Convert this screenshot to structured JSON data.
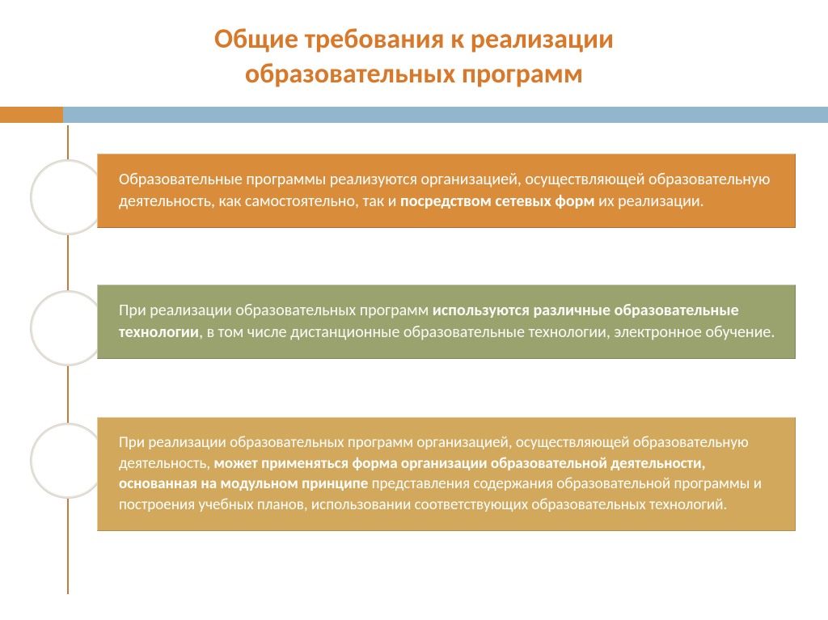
{
  "title_line1": "Общие требования к реализации",
  "title_line2": "образовательных программ",
  "boxes": [
    {
      "pre": "Образовательные программы реализуются организацией, осуществляющей образовательную деятельность, как самостоятельно, так и ",
      "bold": "посредством сетевых форм",
      "post": " их реализации."
    },
    {
      "pre": "При реализации образовательных программ ",
      "bold": "используются различные образовательные технологии",
      "post": ", в том числе дистанционные образовательные технологии, электронное обучение."
    },
    {
      "pre": "При реализации образовательных программ организацией, осуществляющей образовательную деятельность, ",
      "bold": "может применяться форма организации образовательной деятельности, основанная на модульном принципе",
      "post": " представления содержания образовательной программы и построения учебных планов, использовании соответствующих образовательных технологий."
    }
  ],
  "colors": {
    "title": "#d97828",
    "accent_short": "#d98c3a",
    "accent_long": "#92b6cc",
    "box1": "#d98c3a",
    "box2": "#9aa36e",
    "box3": "#d2a95c",
    "stem": "#c47a38"
  }
}
